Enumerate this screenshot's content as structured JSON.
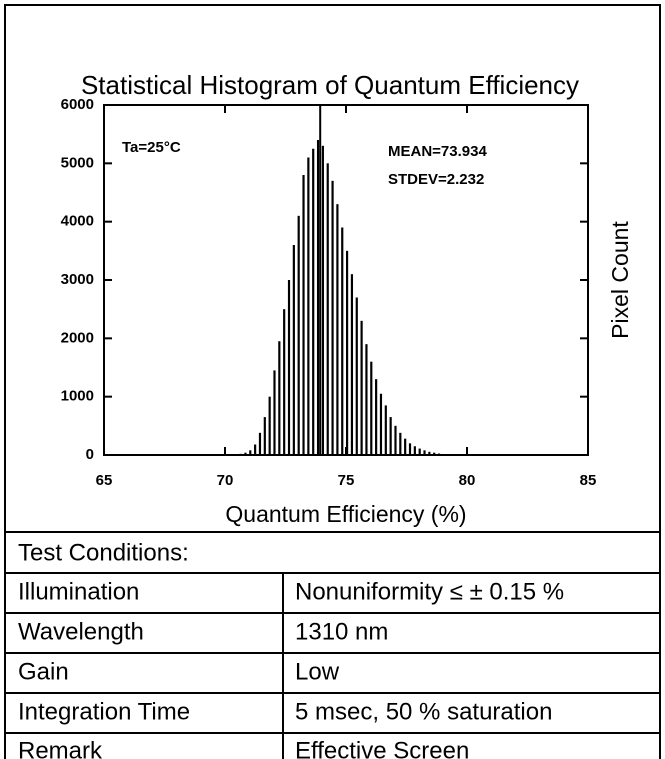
{
  "chart_data": {
    "type": "histogram",
    "title": "Statistical Histogram of Quantum Efficiency",
    "xlabel": "Quantum Efficiency (%)",
    "ylabel": "Pixel Count",
    "annotations": [
      "Ta=25°C",
      "MEAN=73.934",
      "STDEV=2.232"
    ],
    "mean_line": 73.934,
    "color": "#000000",
    "bins": [
      70,
      70.2,
      70.4,
      70.6,
      70.8,
      71,
      71.2,
      71.4,
      71.6,
      71.8,
      72,
      72.2,
      72.4,
      72.6,
      72.8,
      73,
      73.2,
      73.4,
      73.6,
      73.8,
      74,
      74.2,
      74.4,
      74.6,
      74.8,
      75,
      75.2,
      75.4,
      75.6,
      75.8,
      76,
      76.2,
      76.4,
      76.6,
      76.8,
      77,
      77.2,
      77.4,
      77.6,
      77.8,
      78,
      78.2,
      78.4,
      78.6,
      78.8,
      79,
      79.2,
      79.4,
      79.6,
      79.8,
      80
    ],
    "values": [
      0,
      5,
      10,
      20,
      40,
      80,
      180,
      380,
      650,
      1000,
      1450,
      1950,
      2500,
      3000,
      3600,
      4100,
      4800,
      5100,
      5250,
      5400,
      5300,
      5000,
      4700,
      4300,
      3900,
      3500,
      3100,
      2700,
      2300,
      1900,
      1600,
      1300,
      1050,
      850,
      650,
      500,
      380,
      280,
      200,
      150,
      110,
      80,
      55,
      40,
      25,
      15,
      10,
      5,
      3,
      0
    ],
    "xlim": [
      65,
      85
    ],
    "xticks": [
      65,
      70,
      75,
      80,
      85
    ],
    "ylim": [
      0,
      6000
    ],
    "yticks": [
      0,
      1000,
      2000,
      3000,
      4000,
      5000,
      6000
    ]
  },
  "table": {
    "header": "Test Conditions:",
    "rows": [
      [
        "Illumination",
        "Nonuniformity ≤ ± 0.15 %"
      ],
      [
        "Wavelength",
        "1310 nm"
      ],
      [
        "Gain",
        "Low"
      ],
      [
        "Integration Time",
        "5 msec, 50 % saturation"
      ],
      [
        "Remark",
        "Effective Screen"
      ]
    ]
  }
}
